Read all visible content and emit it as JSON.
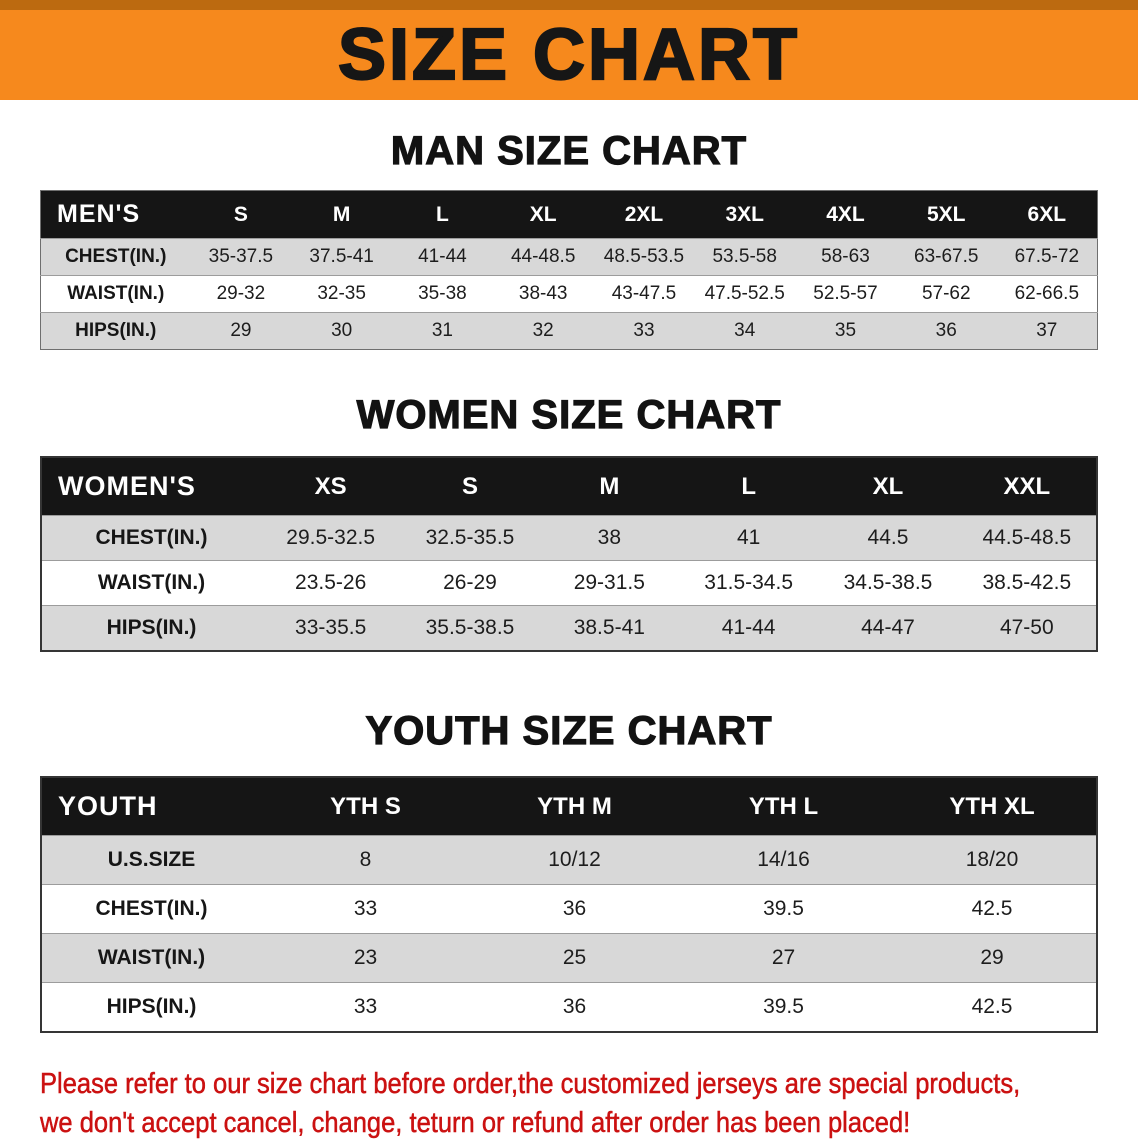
{
  "theme": {
    "orange": "#f6891d",
    "orange-dark": "#bc6a10",
    "header-bg": "#151515",
    "stripe": "#d8d8d8",
    "red": "#cb1111"
  },
  "banner": {
    "title": "SIZE CHART"
  },
  "chart_data": [
    {
      "type": "table",
      "title": "MAN SIZE CHART",
      "columns": [
        "MEN'S",
        "S",
        "M",
        "L",
        "XL",
        "2XL",
        "3XL",
        "4XL",
        "5XL",
        "6XL"
      ],
      "rows": [
        [
          "CHEST(IN.)",
          "35-37.5",
          "37.5-41",
          "41-44",
          "44-48.5",
          "48.5-53.5",
          "53.5-58",
          "58-63",
          "63-67.5",
          "67.5-72"
        ],
        [
          "WAIST(IN.)",
          "29-32",
          "32-35",
          "35-38",
          "38-43",
          "43-47.5",
          "47.5-52.5",
          "52.5-57",
          "57-62",
          "62-66.5"
        ],
        [
          "HIPS(IN.)",
          "29",
          "30",
          "31",
          "32",
          "33",
          "34",
          "35",
          "36",
          "37"
        ]
      ]
    },
    {
      "type": "table",
      "title": "WOMEN SIZE CHART",
      "columns": [
        "WOMEN'S",
        "XS",
        "S",
        "M",
        "L",
        "XL",
        "XXL"
      ],
      "rows": [
        [
          "CHEST(IN.)",
          "29.5-32.5",
          "32.5-35.5",
          "38",
          "41",
          "44.5",
          "44.5-48.5"
        ],
        [
          "WAIST(IN.)",
          "23.5-26",
          "26-29",
          "29-31.5",
          "31.5-34.5",
          "34.5-38.5",
          "38.5-42.5"
        ],
        [
          "HIPS(IN.)",
          "33-35.5",
          "35.5-38.5",
          "38.5-41",
          "41-44",
          "44-47",
          "47-50"
        ]
      ]
    },
    {
      "type": "table",
      "title": "YOUTH SIZE CHART",
      "columns": [
        "YOUTH",
        "YTH S",
        "YTH M",
        "YTH L",
        "YTH XL"
      ],
      "rows": [
        [
          "U.S.SIZE",
          "8",
          "10/12",
          "14/16",
          "18/20"
        ],
        [
          "CHEST(IN.)",
          "33",
          "36",
          "39.5",
          "42.5"
        ],
        [
          "WAIST(IN.)",
          "23",
          "25",
          "27",
          "29"
        ],
        [
          "HIPS(IN.)",
          "33",
          "36",
          "39.5",
          "42.5"
        ]
      ]
    }
  ],
  "disclaimer": {
    "lines": [
      "Please refer to our size chart before order,the customized jerseys are special products,",
      "we don't accept cancel, change, teturn or refund after order has been placed!"
    ]
  }
}
